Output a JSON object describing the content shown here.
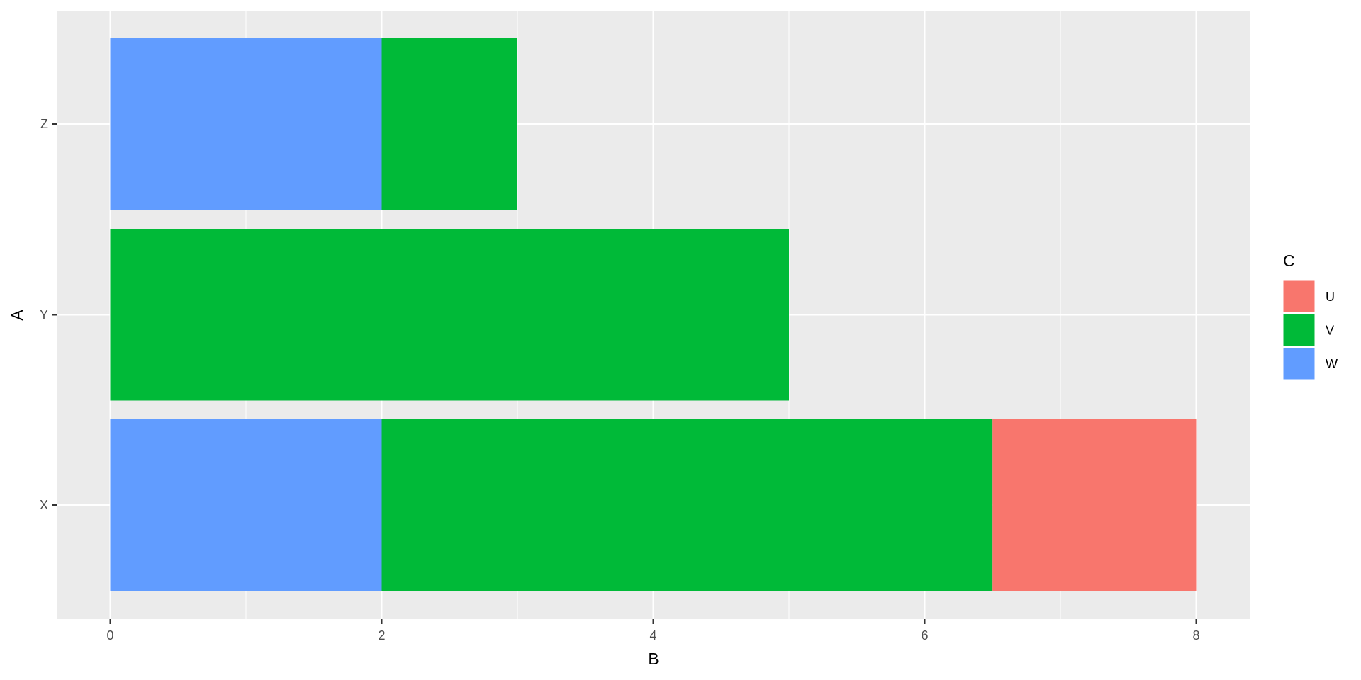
{
  "chart_data": {
    "type": "bar",
    "orientation": "horizontal",
    "stacked": true,
    "categories": [
      "X",
      "Y",
      "Z"
    ],
    "series": [
      {
        "name": "U",
        "color": "#F8766D",
        "values": [
          1.5,
          0,
          0
        ]
      },
      {
        "name": "V",
        "color": "#00BA38",
        "values": [
          4.5,
          5,
          1
        ]
      },
      {
        "name": "W",
        "color": "#619CFF",
        "values": [
          2,
          0,
          2
        ]
      }
    ],
    "xlabel": "B",
    "ylabel": "A",
    "xlim": [
      -0.4,
      8.4
    ],
    "xticks": [
      "0",
      "2",
      "4",
      "6",
      "8"
    ],
    "grid": true,
    "legend": {
      "title": "C",
      "position": "right",
      "entries": [
        "U",
        "V",
        "W"
      ]
    },
    "panel_background": "#EBEBEB"
  }
}
